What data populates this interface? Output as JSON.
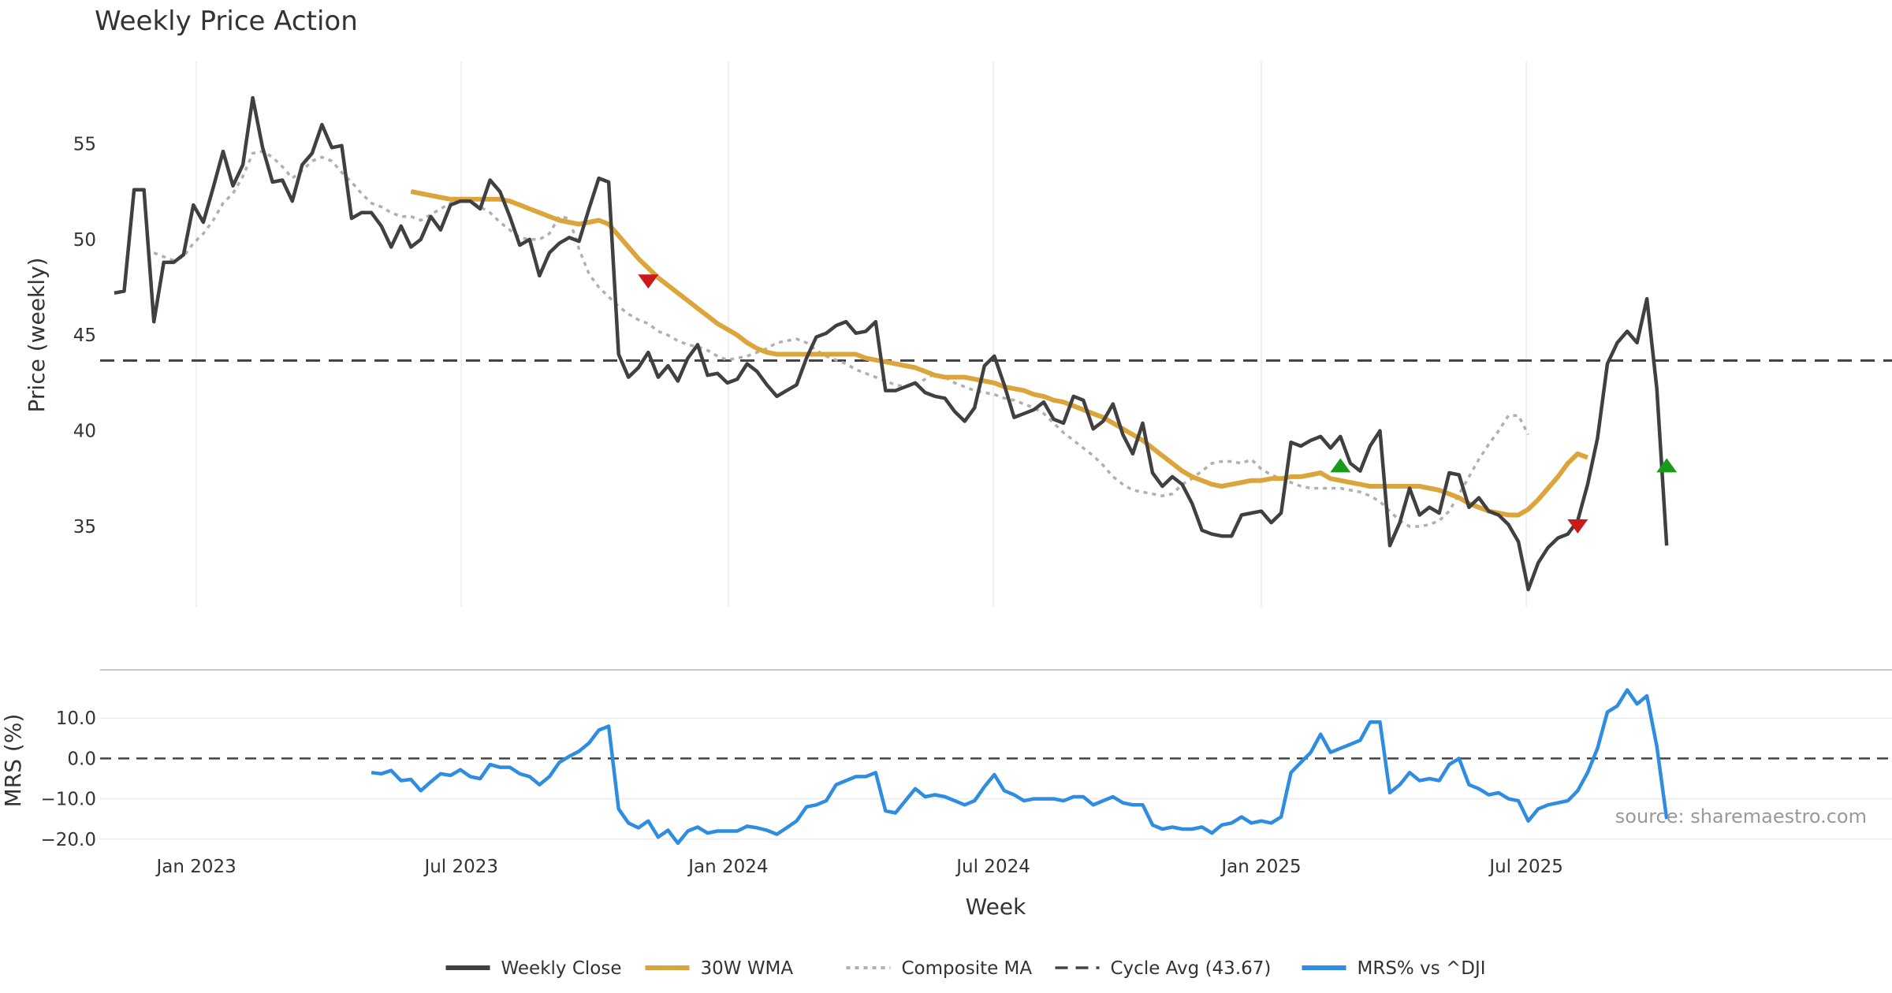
{
  "chart_data": {
    "type": "line",
    "title": "Weekly Price Action",
    "xlabel": "Week",
    "x_ticks": [
      "Jan 2023",
      "Jul 2023",
      "Jan 2024",
      "Jul 2024",
      "Jan 2025",
      "Jul 2025"
    ],
    "x_range": [
      0,
      175
    ],
    "x_tick_positions": [
      8.3,
      35.1,
      62.1,
      88.9,
      116.0,
      142.8
    ],
    "price_panel": {
      "ylabel": "Price (weekly)",
      "ylim": [
        30.8,
        59.3
      ],
      "y_ticks": [
        35,
        40,
        45,
        50,
        55
      ],
      "series": [
        {
          "name": "Weekly Close",
          "color": "#404040",
          "style": "solid",
          "start_index": 0,
          "values": [
            47.2,
            47.3,
            52.6,
            52.6,
            45.7,
            48.8,
            48.8,
            49.2,
            51.8,
            50.9,
            52.7,
            54.6,
            52.8,
            53.9,
            57.4,
            54.8,
            53.0,
            53.1,
            52.0,
            53.9,
            54.5,
            56.0,
            54.8,
            54.9,
            51.1,
            51.4,
            51.4,
            50.7,
            49.6,
            50.7,
            49.6,
            50.0,
            51.2,
            50.5,
            51.8,
            52.0,
            52.0,
            51.6,
            53.1,
            52.5,
            51.2,
            49.7,
            50.0,
            48.1,
            49.3,
            49.8,
            50.1,
            49.9,
            51.6,
            53.2,
            53.0,
            44.0,
            42.8,
            43.3,
            44.1,
            42.8,
            43.4,
            42.6,
            43.8,
            44.5,
            42.9,
            43.0,
            42.5,
            42.7,
            43.5,
            43.1,
            42.4,
            41.8,
            42.1,
            42.4,
            43.8,
            44.9,
            45.1,
            45.5,
            45.7,
            45.1,
            45.2,
            45.7,
            42.1,
            42.1,
            42.3,
            42.5,
            42.0,
            41.8,
            41.7,
            41.0,
            40.5,
            41.2,
            43.4,
            43.9,
            42.4,
            40.7,
            40.9,
            41.1,
            41.5,
            40.6,
            40.4,
            41.8,
            41.6,
            40.1,
            40.5,
            41.4,
            39.8,
            38.8,
            40.4,
            37.8,
            37.1,
            37.6,
            37.2,
            36.2,
            34.8,
            34.6,
            34.5,
            34.5,
            35.6,
            35.7,
            35.8,
            35.2,
            35.7,
            39.4,
            39.2,
            39.5,
            39.7,
            39.1,
            39.7,
            38.3,
            37.9,
            39.2,
            40.0,
            34.0,
            35.2,
            37.0,
            35.6,
            36.0,
            35.7,
            37.8,
            37.7,
            36.0,
            36.5,
            35.8,
            35.6,
            35.1,
            34.2,
            31.7,
            33.1,
            33.9,
            34.4,
            34.6,
            35.3,
            37.2,
            39.6,
            43.5,
            44.6,
            45.2,
            44.6,
            46.9,
            42.2,
            34.0
          ]
        },
        {
          "name": "30W WMA",
          "color": "#dba53c",
          "style": "solid",
          "start_index": 30,
          "values": [
            52.5,
            52.4,
            52.3,
            52.2,
            52.1,
            52.1,
            52.1,
            52.1,
            52.1,
            52.1,
            52.0,
            51.8,
            51.6,
            51.4,
            51.2,
            51.0,
            50.9,
            50.8,
            50.9,
            51.0,
            50.8,
            50.2,
            49.6,
            49.0,
            48.5,
            48.0,
            47.6,
            47.2,
            46.8,
            46.4,
            46.0,
            45.6,
            45.3,
            45.0,
            44.6,
            44.3,
            44.1,
            44.0,
            44.0,
            44.0,
            44.0,
            44.0,
            44.0,
            44.0,
            44.0,
            44.0,
            43.8,
            43.7,
            43.6,
            43.5,
            43.4,
            43.3,
            43.1,
            42.9,
            42.8,
            42.8,
            42.8,
            42.7,
            42.6,
            42.5,
            42.3,
            42.2,
            42.1,
            41.9,
            41.8,
            41.6,
            41.5,
            41.3,
            41.1,
            40.9,
            40.7,
            40.4,
            40.1,
            39.8,
            39.5,
            39.1,
            38.7,
            38.3,
            37.9,
            37.6,
            37.4,
            37.2,
            37.1,
            37.2,
            37.3,
            37.4,
            37.4,
            37.5,
            37.5,
            37.6,
            37.6,
            37.7,
            37.8,
            37.5,
            37.4,
            37.3,
            37.2,
            37.1,
            37.1,
            37.1,
            37.1,
            37.1,
            37.1,
            37.0,
            36.9,
            36.7,
            36.5,
            36.2,
            36.0,
            35.8,
            35.7,
            35.6,
            35.6,
            35.9,
            36.4,
            37.0,
            37.6,
            38.3,
            38.8,
            38.6
          ]
        },
        {
          "name": "Composite MA",
          "color": "#b0b0b0",
          "style": "dotted",
          "start_index": 4,
          "values": [
            49.3,
            49.1,
            48.9,
            49.1,
            49.8,
            50.3,
            51.0,
            51.9,
            52.4,
            53.3,
            54.5,
            54.6,
            54.3,
            53.8,
            53.2,
            53.6,
            54.1,
            54.3,
            54.1,
            53.5,
            53.0,
            52.4,
            51.9,
            51.7,
            51.4,
            51.2,
            51.2,
            51.0,
            51.3,
            51.6,
            51.9,
            52.0,
            52.0,
            51.7,
            51.4,
            50.9,
            50.5,
            50.1,
            50.0,
            50.0,
            50.3,
            51.2,
            51.1,
            49.5,
            48.2,
            47.5,
            47.0,
            46.5,
            46.1,
            45.8,
            45.6,
            45.2,
            45.0,
            44.7,
            44.5,
            44.4,
            44.2,
            43.9,
            43.7,
            43.8,
            43.9,
            44.1,
            44.3,
            44.6,
            44.7,
            44.8,
            44.6,
            44.2,
            43.9,
            43.7,
            43.5,
            43.2,
            43.0,
            42.8,
            42.6,
            42.4,
            42.3,
            42.4,
            42.7,
            43.0,
            42.8,
            42.5,
            42.3,
            42.1,
            42.0,
            41.9,
            41.7,
            41.6,
            41.4,
            41.2,
            40.9,
            40.4,
            39.9,
            39.5,
            39.1,
            38.7,
            38.2,
            37.6,
            37.2,
            36.9,
            36.8,
            36.7,
            36.6,
            36.7,
            37.2,
            37.5,
            37.9,
            38.3,
            38.4,
            38.4,
            38.3,
            38.5,
            38.0,
            37.7,
            37.5,
            37.3,
            37.1,
            37.0,
            37.0,
            37.0,
            37.0,
            36.9,
            36.8,
            36.6,
            36.3,
            35.8,
            35.3,
            35.0,
            35.0,
            35.1,
            35.3,
            35.8,
            36.7,
            37.6,
            38.5,
            39.3,
            40.0,
            40.8,
            40.8,
            39.8
          ]
        },
        {
          "name": "Cycle Avg (43.67)",
          "color": "#444444",
          "style": "dashed",
          "constant": 43.67
        }
      ],
      "markers": [
        {
          "type": "sell",
          "x": 54,
          "y": 47.8,
          "color": "#cc1a1a"
        },
        {
          "type": "buy",
          "x": 124,
          "y": 38.2,
          "color": "#1a9a1a"
        },
        {
          "type": "sell",
          "x": 148,
          "y": 35.0,
          "color": "#cc1a1a"
        },
        {
          "type": "buy",
          "x": 157,
          "y": 38.2,
          "color": "#1a9a1a"
        }
      ]
    },
    "mrs_panel": {
      "ylabel": "MRS (%)",
      "ylim": [
        -22,
        20
      ],
      "y_ticks": [
        -20.0,
        -10.0,
        0.0,
        10.0
      ],
      "y_tick_labels": [
        "−20.0",
        "−10.0",
        "0.0",
        "10.0"
      ],
      "zero_line": 0,
      "series": [
        {
          "name": "MRS% vs ^DJI",
          "color": "#2e8de0",
          "style": "solid",
          "start_index": 26,
          "values": [
            -3.5,
            -3.8,
            -3.0,
            -5.5,
            -5.2,
            -8.0,
            -5.8,
            -3.8,
            -4.2,
            -2.8,
            -4.5,
            -5.0,
            -1.5,
            -2.2,
            -2.2,
            -3.8,
            -4.5,
            -6.5,
            -4.5,
            -1.0,
            0.5,
            1.8,
            3.8,
            7.0,
            8.0,
            -12.5,
            -16.0,
            -17.2,
            -15.5,
            -19.5,
            -17.8,
            -21.0,
            -18.0,
            -17.0,
            -18.5,
            -18.0,
            -18.0,
            -18.0,
            -16.8,
            -17.2,
            -17.8,
            -18.8,
            -17.2,
            -15.5,
            -12.0,
            -11.5,
            -10.5,
            -6.5,
            -5.5,
            -4.5,
            -4.5,
            -3.5,
            -13.0,
            -13.5,
            -10.5,
            -7.5,
            -9.5,
            -9.0,
            -9.5,
            -10.5,
            -11.5,
            -10.5,
            -7.0,
            -4.0,
            -8.0,
            -9.0,
            -10.5,
            -10.0,
            -10.0,
            -10.0,
            -10.5,
            -9.5,
            -9.5,
            -11.5,
            -10.5,
            -9.5,
            -11.0,
            -11.5,
            -11.5,
            -16.5,
            -17.5,
            -17.0,
            -17.5,
            -17.5,
            -17.0,
            -18.5,
            -16.5,
            -16.0,
            -14.5,
            -16.0,
            -15.5,
            -16.0,
            -14.5,
            -3.5,
            -1.0,
            1.5,
            6.0,
            1.5,
            2.5,
            3.5,
            4.5,
            9.0,
            9.0,
            -8.5,
            -6.5,
            -3.5,
            -5.5,
            -5.0,
            -5.5,
            -1.5,
            0.0,
            -6.5,
            -7.5,
            -9.0,
            -8.5,
            -10.0,
            -10.5,
            -15.5,
            -12.5,
            -11.5,
            -11.0,
            -10.5,
            -8.0,
            -3.5,
            2.5,
            11.5,
            13.0,
            17.0,
            13.5,
            15.5,
            3.0,
            -15.0
          ]
        }
      ]
    },
    "legend": [
      {
        "label": "Weekly Close",
        "color": "#404040",
        "style": "solid"
      },
      {
        "label": "30W WMA",
        "color": "#dba53c",
        "style": "solid"
      },
      {
        "label": "Composite MA",
        "color": "#b0b0b0",
        "style": "dotted"
      },
      {
        "label": "Cycle Avg (43.67)",
        "color": "#444444",
        "style": "dashed"
      },
      {
        "label": "MRS% vs ^DJI",
        "color": "#2e8de0",
        "style": "solid"
      }
    ],
    "legend_position": "bottom-center",
    "source": "source: sharemaestro.com"
  }
}
